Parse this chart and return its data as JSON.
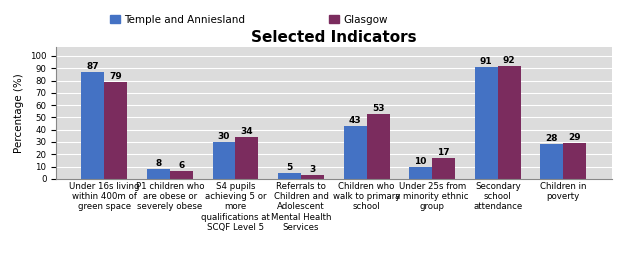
{
  "title": "Selected Indicators",
  "legend_labels": [
    "Temple and Anniesland",
    "Glasgow"
  ],
  "bar_colors": [
    "#4472C4",
    "#7B2C5E"
  ],
  "categories": [
    "Under 16s living\nwithin 400m of\ngreen space",
    "P1 children who\nare obese or\nseverely obese",
    "S4 pupils\nachieving 5 or\nmore\nqualifications at\nSCQF Level 5",
    "Referrals to\nChildren and\nAdolescent\nMental Health\nServices",
    "Children who\nwalk to primary\nschool",
    "Under 25s from\na minority ethnic\ngroup",
    "Secondary\nschool\nattendance",
    "Children in\npoverty"
  ],
  "temple_values": [
    87,
    8,
    30,
    5,
    43,
    10,
    91,
    28
  ],
  "glasgow_values": [
    79,
    6,
    34,
    3,
    53,
    17,
    92,
    29
  ],
  "ylabel": "Percentage (%)",
  "ylim": [
    0,
    107
  ],
  "yticks": [
    0,
    10,
    20,
    30,
    40,
    50,
    60,
    70,
    80,
    90,
    100
  ],
  "background_color": "#DCDCDC",
  "title_fontsize": 11,
  "axis_label_fontsize": 7.5,
  "tick_label_fontsize": 6.2,
  "bar_label_fontsize": 6.5,
  "legend_fontsize": 7.5
}
